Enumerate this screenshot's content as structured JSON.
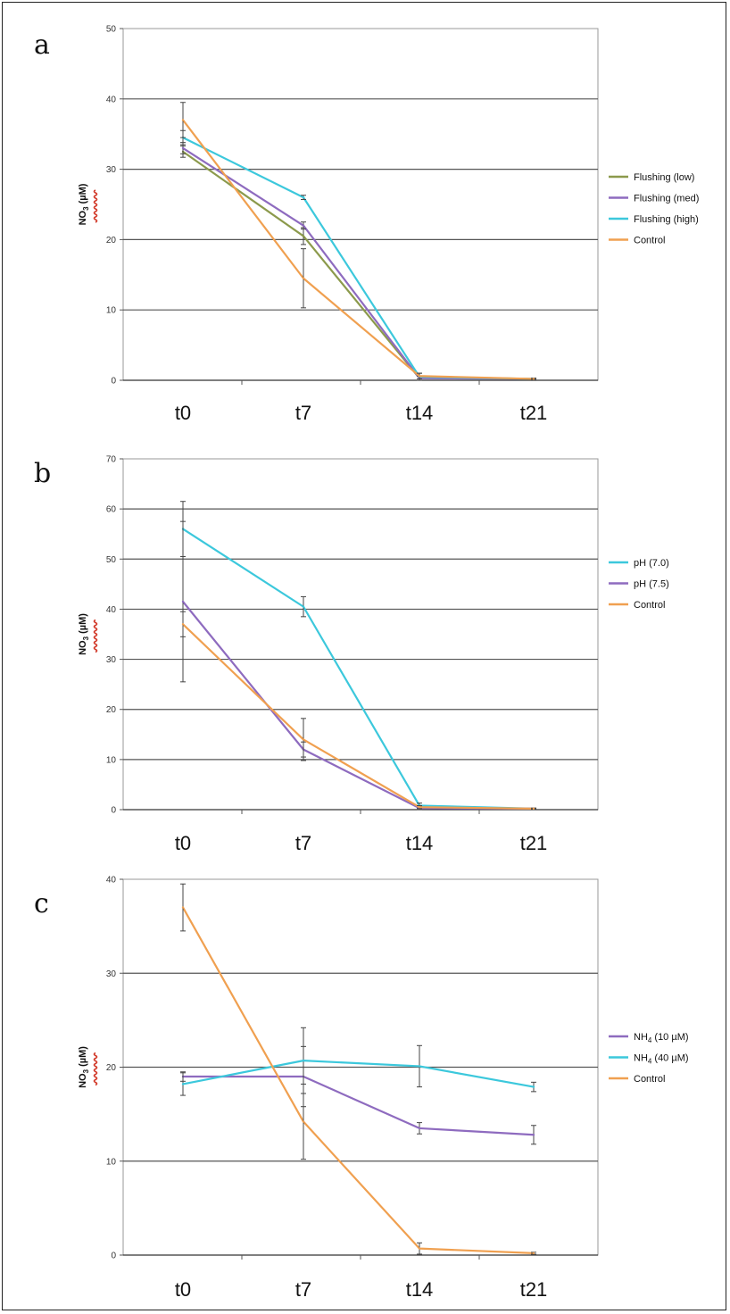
{
  "chart_data": [
    {
      "type": "line",
      "panel_label": "a",
      "ylabel": "NO",
      "ylabel_sub": "3",
      "ylabel_unit": "(µM)",
      "categories": [
        "t0",
        "t7",
        "t14",
        "t21"
      ],
      "ylim": [
        0,
        50
      ],
      "yticks": [
        "0",
        "10",
        "20",
        "30",
        "40",
        "50"
      ],
      "grid": true,
      "legend_position": "right",
      "series": [
        {
          "name": "Flushing (low)",
          "color": "#8c9a4c",
          "values": [
            32.5,
            20.5,
            0.3,
            0.2
          ],
          "err": [
            0.8,
            1.2,
            0.3,
            0.1
          ]
        },
        {
          "name": "Flushing (med)",
          "color": "#8e6bbf",
          "values": [
            33.0,
            22.0,
            0.3,
            0.2
          ],
          "err": [
            0.8,
            0.5,
            0.3,
            0.1
          ]
        },
        {
          "name": "Flushing (high)",
          "color": "#3cc8dc",
          "values": [
            34.5,
            26.0,
            0.5,
            0.2
          ],
          "err": [
            1.0,
            0.3,
            0.5,
            0.1
          ]
        },
        {
          "name": "Control",
          "color": "#f0a050",
          "values": [
            37.0,
            14.5,
            0.6,
            0.2
          ],
          "err": [
            2.5,
            4.2,
            0.4,
            0.1
          ]
        }
      ]
    },
    {
      "type": "line",
      "panel_label": "b",
      "ylabel": "NO",
      "ylabel_sub": "3",
      "ylabel_unit": "(µM)",
      "categories": [
        "t0",
        "t7",
        "t14",
        "t21"
      ],
      "ylim": [
        0,
        70
      ],
      "yticks": [
        "0",
        "10",
        "20",
        "30",
        "40",
        "50",
        "60",
        "70"
      ],
      "grid": true,
      "legend_position": "right",
      "series": [
        {
          "name": "pH (7.0)",
          "color": "#3cc8dc",
          "values": [
            56.0,
            40.5,
            0.8,
            0.2
          ],
          "err": [
            5.5,
            2.0,
            0.5,
            0.1
          ]
        },
        {
          "name": "pH (7.5)",
          "color": "#8e6bbf",
          "values": [
            41.5,
            12.0,
            0.3,
            0.2
          ],
          "err": [
            16.0,
            1.5,
            0.3,
            0.1
          ]
        },
        {
          "name": "Control",
          "color": "#f0a050",
          "values": [
            37.0,
            14.0,
            0.5,
            0.2
          ],
          "err": [
            2.5,
            4.2,
            0.3,
            0.1
          ]
        }
      ]
    },
    {
      "type": "line",
      "panel_label": "c",
      "ylabel": "NO",
      "ylabel_sub": "3",
      "ylabel_unit": "(µM)",
      "categories": [
        "t0",
        "t7",
        "t14",
        "t21"
      ],
      "ylim": [
        0,
        40
      ],
      "yticks": [
        "0",
        "10",
        "20",
        "30",
        "40"
      ],
      "grid": true,
      "legend_position": "right",
      "series": [
        {
          "name": "NH",
          "name_sub": "4",
          "name_tail": " (10 µM)",
          "color": "#8e6bbf",
          "values": [
            19.0,
            19.0,
            13.5,
            12.8
          ],
          "err": [
            0.5,
            3.2,
            0.6,
            1.0
          ]
        },
        {
          "name": "NH",
          "name_sub": "4",
          "name_tail": " (40 µM)",
          "color": "#3cc8dc",
          "values": [
            18.2,
            20.7,
            20.1,
            17.9
          ],
          "err": [
            1.2,
            3.5,
            2.2,
            0.5
          ]
        },
        {
          "name": "Control",
          "color": "#f0a050",
          "values": [
            37.0,
            14.2,
            0.7,
            0.2
          ],
          "err": [
            2.5,
            4.0,
            0.6,
            0.1
          ]
        }
      ]
    }
  ]
}
